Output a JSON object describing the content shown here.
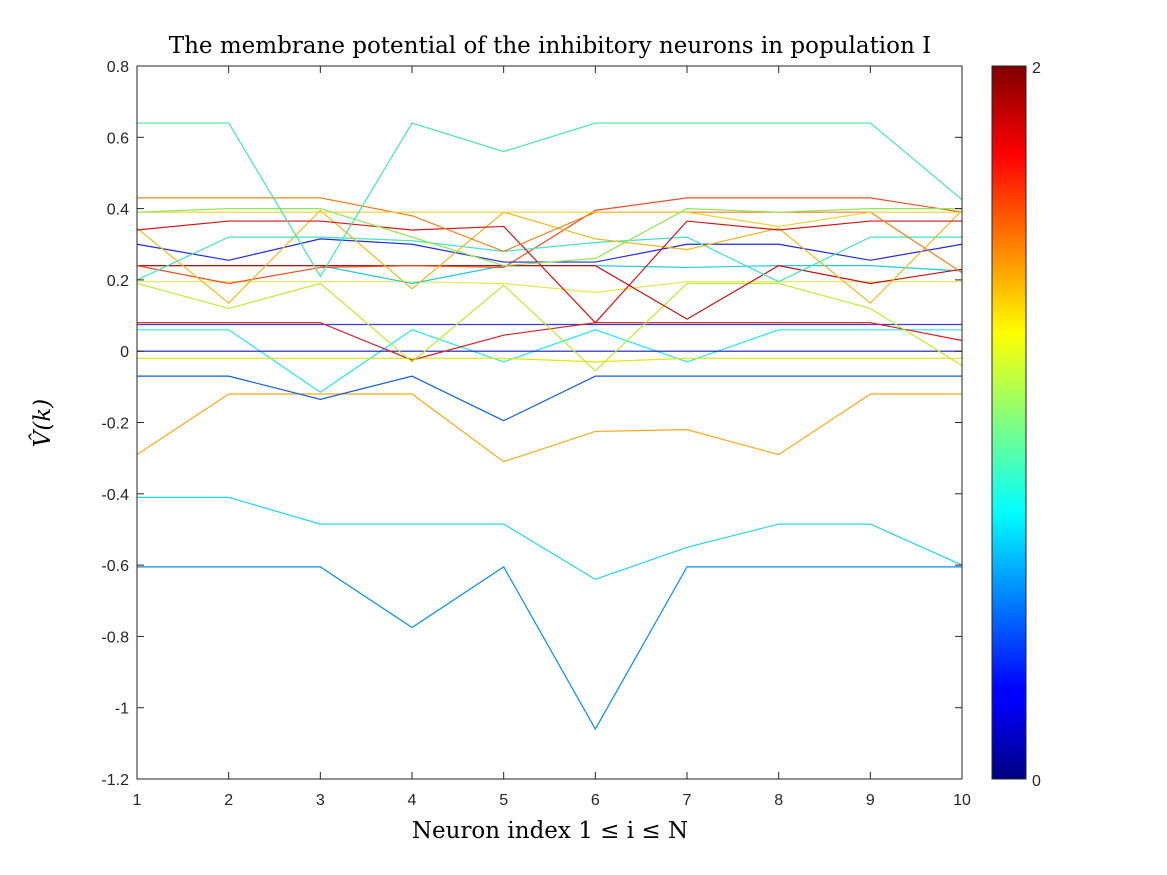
{
  "chart_data": {
    "type": "line",
    "title": "The membrane potential of the inhibitory neurons in population I",
    "xlabel": "Neuron index 1 ≤ i ≤ N",
    "ylabel": "V̂(k)",
    "xlim": [
      1,
      10
    ],
    "ylim": [
      -1.2,
      0.8
    ],
    "xticks": [
      "1",
      "2",
      "3",
      "4",
      "5",
      "6",
      "7",
      "8",
      "9",
      "10"
    ],
    "yticks": [
      "0.8",
      "0.6",
      "0.4",
      "0.2",
      "0",
      "-0.2",
      "-0.4",
      "-0.6",
      "-0.8",
      "-1",
      "-1.2"
    ],
    "colorbar": {
      "colormap": "jet",
      "min_label": "0",
      "max_label": "2"
    },
    "grid": false,
    "x": [
      1,
      2,
      3,
      4,
      5,
      6,
      7,
      8,
      9,
      10
    ],
    "series": [
      {
        "color": "#0a8ee8",
        "values": [
          -0.605,
          -0.605,
          -0.605,
          -0.775,
          -0.605,
          -1.06,
          -0.605,
          -0.605,
          -0.605,
          -0.605
        ]
      },
      {
        "color": "#20d6ef",
        "values": [
          -0.41,
          -0.41,
          -0.485,
          -0.485,
          -0.485,
          -0.64,
          -0.55,
          -0.485,
          -0.485,
          -0.6
        ]
      },
      {
        "color": "#ffa81e",
        "values": [
          -0.29,
          -0.12,
          -0.12,
          -0.12,
          -0.31,
          -0.225,
          -0.22,
          -0.29,
          -0.12,
          -0.12
        ]
      },
      {
        "color": "#0f5ee0",
        "values": [
          -0.07,
          -0.07,
          -0.135,
          -0.07,
          -0.195,
          -0.07,
          -0.07,
          -0.07,
          -0.07,
          -0.07
        ]
      },
      {
        "color": "#20e8f5",
        "values": [
          0.06,
          0.06,
          -0.115,
          0.06,
          -0.03,
          0.06,
          -0.03,
          0.06,
          0.06,
          0.06
        ]
      },
      {
        "color": "#e6e600",
        "values": [
          -0.02,
          -0.02,
          -0.02,
          -0.02,
          -0.02,
          -0.03,
          -0.02,
          -0.02,
          -0.02,
          -0.02
        ]
      },
      {
        "color": "#1a1ab8",
        "values": [
          0.0,
          0.0,
          0.0,
          0.0,
          0.0,
          0.0,
          0.0,
          0.0,
          0.0,
          0.0
        ]
      },
      {
        "color": "#3b3bd8",
        "values": [
          0.075,
          0.075,
          0.075,
          0.075,
          0.075,
          0.075,
          0.075,
          0.075,
          0.075,
          0.075
        ]
      },
      {
        "color": "#d92020",
        "values": [
          0.08,
          0.08,
          0.08,
          -0.025,
          0.045,
          0.08,
          0.08,
          0.08,
          0.08,
          0.03
        ]
      },
      {
        "color": "#b8ee30",
        "values": [
          0.19,
          0.12,
          0.19,
          -0.03,
          0.185,
          -0.055,
          0.19,
          0.19,
          0.12,
          -0.04
        ]
      },
      {
        "color": "#e8e650",
        "values": [
          0.195,
          0.195,
          0.195,
          0.195,
          0.19,
          0.165,
          0.195,
          0.195,
          0.195,
          0.195
        ]
      },
      {
        "color": "#1cc9e6",
        "values": [
          0.24,
          0.24,
          0.24,
          0.19,
          0.24,
          0.24,
          0.235,
          0.24,
          0.24,
          0.225
        ]
      },
      {
        "color": "#c01010",
        "values": [
          0.24,
          0.24,
          0.24,
          0.24,
          0.24,
          0.24,
          0.09,
          0.24,
          0.19,
          0.23
        ]
      },
      {
        "color": "#f0501e",
        "values": [
          0.24,
          0.19,
          0.235,
          0.24,
          0.235,
          0.395,
          0.43,
          0.43,
          0.43,
          0.39
        ]
      },
      {
        "color": "#1f2ed8",
        "values": [
          0.3,
          0.255,
          0.315,
          0.3,
          0.25,
          0.25,
          0.3,
          0.3,
          0.255,
          0.3
        ]
      },
      {
        "color": "#40e2c9",
        "values": [
          0.2,
          0.32,
          0.32,
          0.31,
          0.28,
          0.305,
          0.32,
          0.195,
          0.32,
          0.32
        ]
      },
      {
        "color": "#f0b81e",
        "values": [
          0.345,
          0.135,
          0.395,
          0.175,
          0.39,
          0.315,
          0.285,
          0.345,
          0.135,
          0.395
        ]
      },
      {
        "color": "#d01818",
        "values": [
          0.34,
          0.365,
          0.365,
          0.34,
          0.35,
          0.08,
          0.365,
          0.34,
          0.365,
          0.365
        ]
      },
      {
        "color": "#f0801e",
        "values": [
          0.43,
          0.43,
          0.43,
          0.38,
          0.28,
          0.39,
          0.39,
          0.39,
          0.39,
          0.22
        ]
      },
      {
        "color": "#f0d030",
        "values": [
          0.39,
          0.39,
          0.39,
          0.39,
          0.39,
          0.39,
          0.39,
          0.35,
          0.39,
          0.39
        ]
      },
      {
        "color": "#8ee850",
        "values": [
          0.39,
          0.4,
          0.4,
          0.32,
          0.24,
          0.26,
          0.4,
          0.39,
          0.4,
          0.4
        ]
      },
      {
        "color": "#44e8aa",
        "values": [
          0.64,
          0.64,
          0.21,
          0.64,
          0.56,
          0.64,
          0.64,
          0.64,
          0.64,
          0.425
        ]
      }
    ]
  }
}
